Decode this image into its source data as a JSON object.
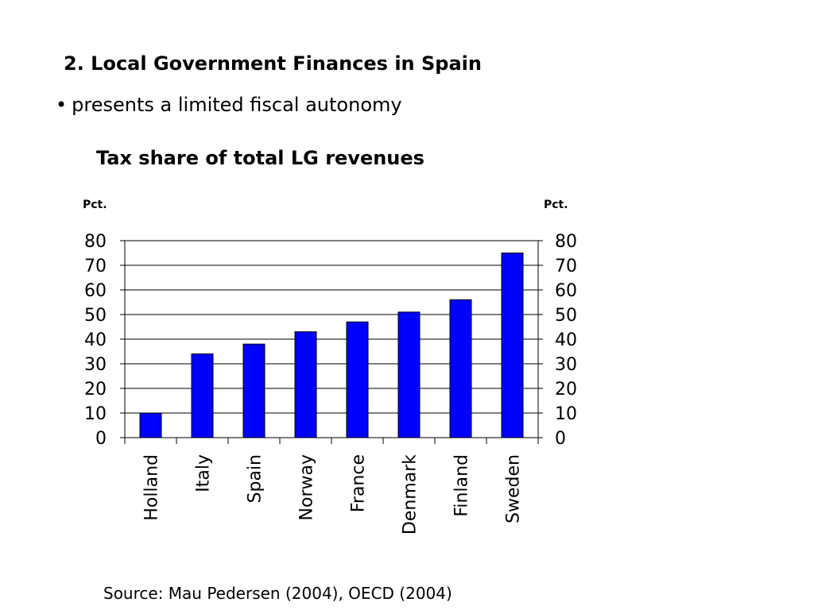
{
  "slide": {
    "heading": "2. Local Government Finances in Spain",
    "bullet": "presents a limited fiscal autonomy",
    "source": "Source: Mau Pedersen (2004), OECD (2004)"
  },
  "chart_data": {
    "type": "bar",
    "title": "Tax share of total LG revenues",
    "ylabel": "Pct.",
    "ylabel_right": "Pct.",
    "categories": [
      "Holland",
      "Italy",
      "Spain",
      "Norway",
      "France",
      "Denmark",
      "Finland",
      "Sweden"
    ],
    "values": [
      10,
      34,
      38,
      43,
      47,
      51,
      56,
      75
    ],
    "ylim": [
      0,
      80
    ],
    "yticks": [
      0,
      10,
      20,
      30,
      40,
      50,
      60,
      70,
      80
    ],
    "grid": true,
    "legend": "none",
    "bar_color": "#0000FF",
    "bar_outline_color": "#000000"
  }
}
